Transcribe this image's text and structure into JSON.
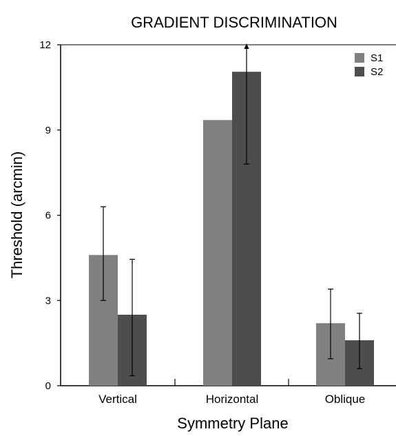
{
  "chart_data": {
    "type": "bar",
    "title": "GRADIENT DISCRIMINATION",
    "xlabel": "Symmetry Plane",
    "ylabel": "Threshold (arcmin)",
    "ylim": [
      0,
      12
    ],
    "yticks": [
      0,
      3,
      6,
      9,
      12
    ],
    "categories": [
      "Vertical",
      "Horizontal",
      "Oblique"
    ],
    "series": [
      {
        "name": "S1",
        "color": "#808080",
        "values": [
          4.6,
          9.35,
          2.2
        ],
        "err_low": [
          3.0,
          null,
          0.95
        ],
        "err_high": [
          6.3,
          null,
          3.4
        ]
      },
      {
        "name": "S2",
        "color": "#4d4d4d",
        "values": [
          2.5,
          11.05,
          1.6
        ],
        "err_low": [
          0.35,
          7.8,
          0.6
        ],
        "err_high": [
          4.45,
          12.0,
          2.55
        ]
      }
    ],
    "grid": false,
    "legend_position": "top-right",
    "annotations": [
      "Horizontal S2 upper error bar shown with arrowhead (extends beyond axis)"
    ]
  }
}
